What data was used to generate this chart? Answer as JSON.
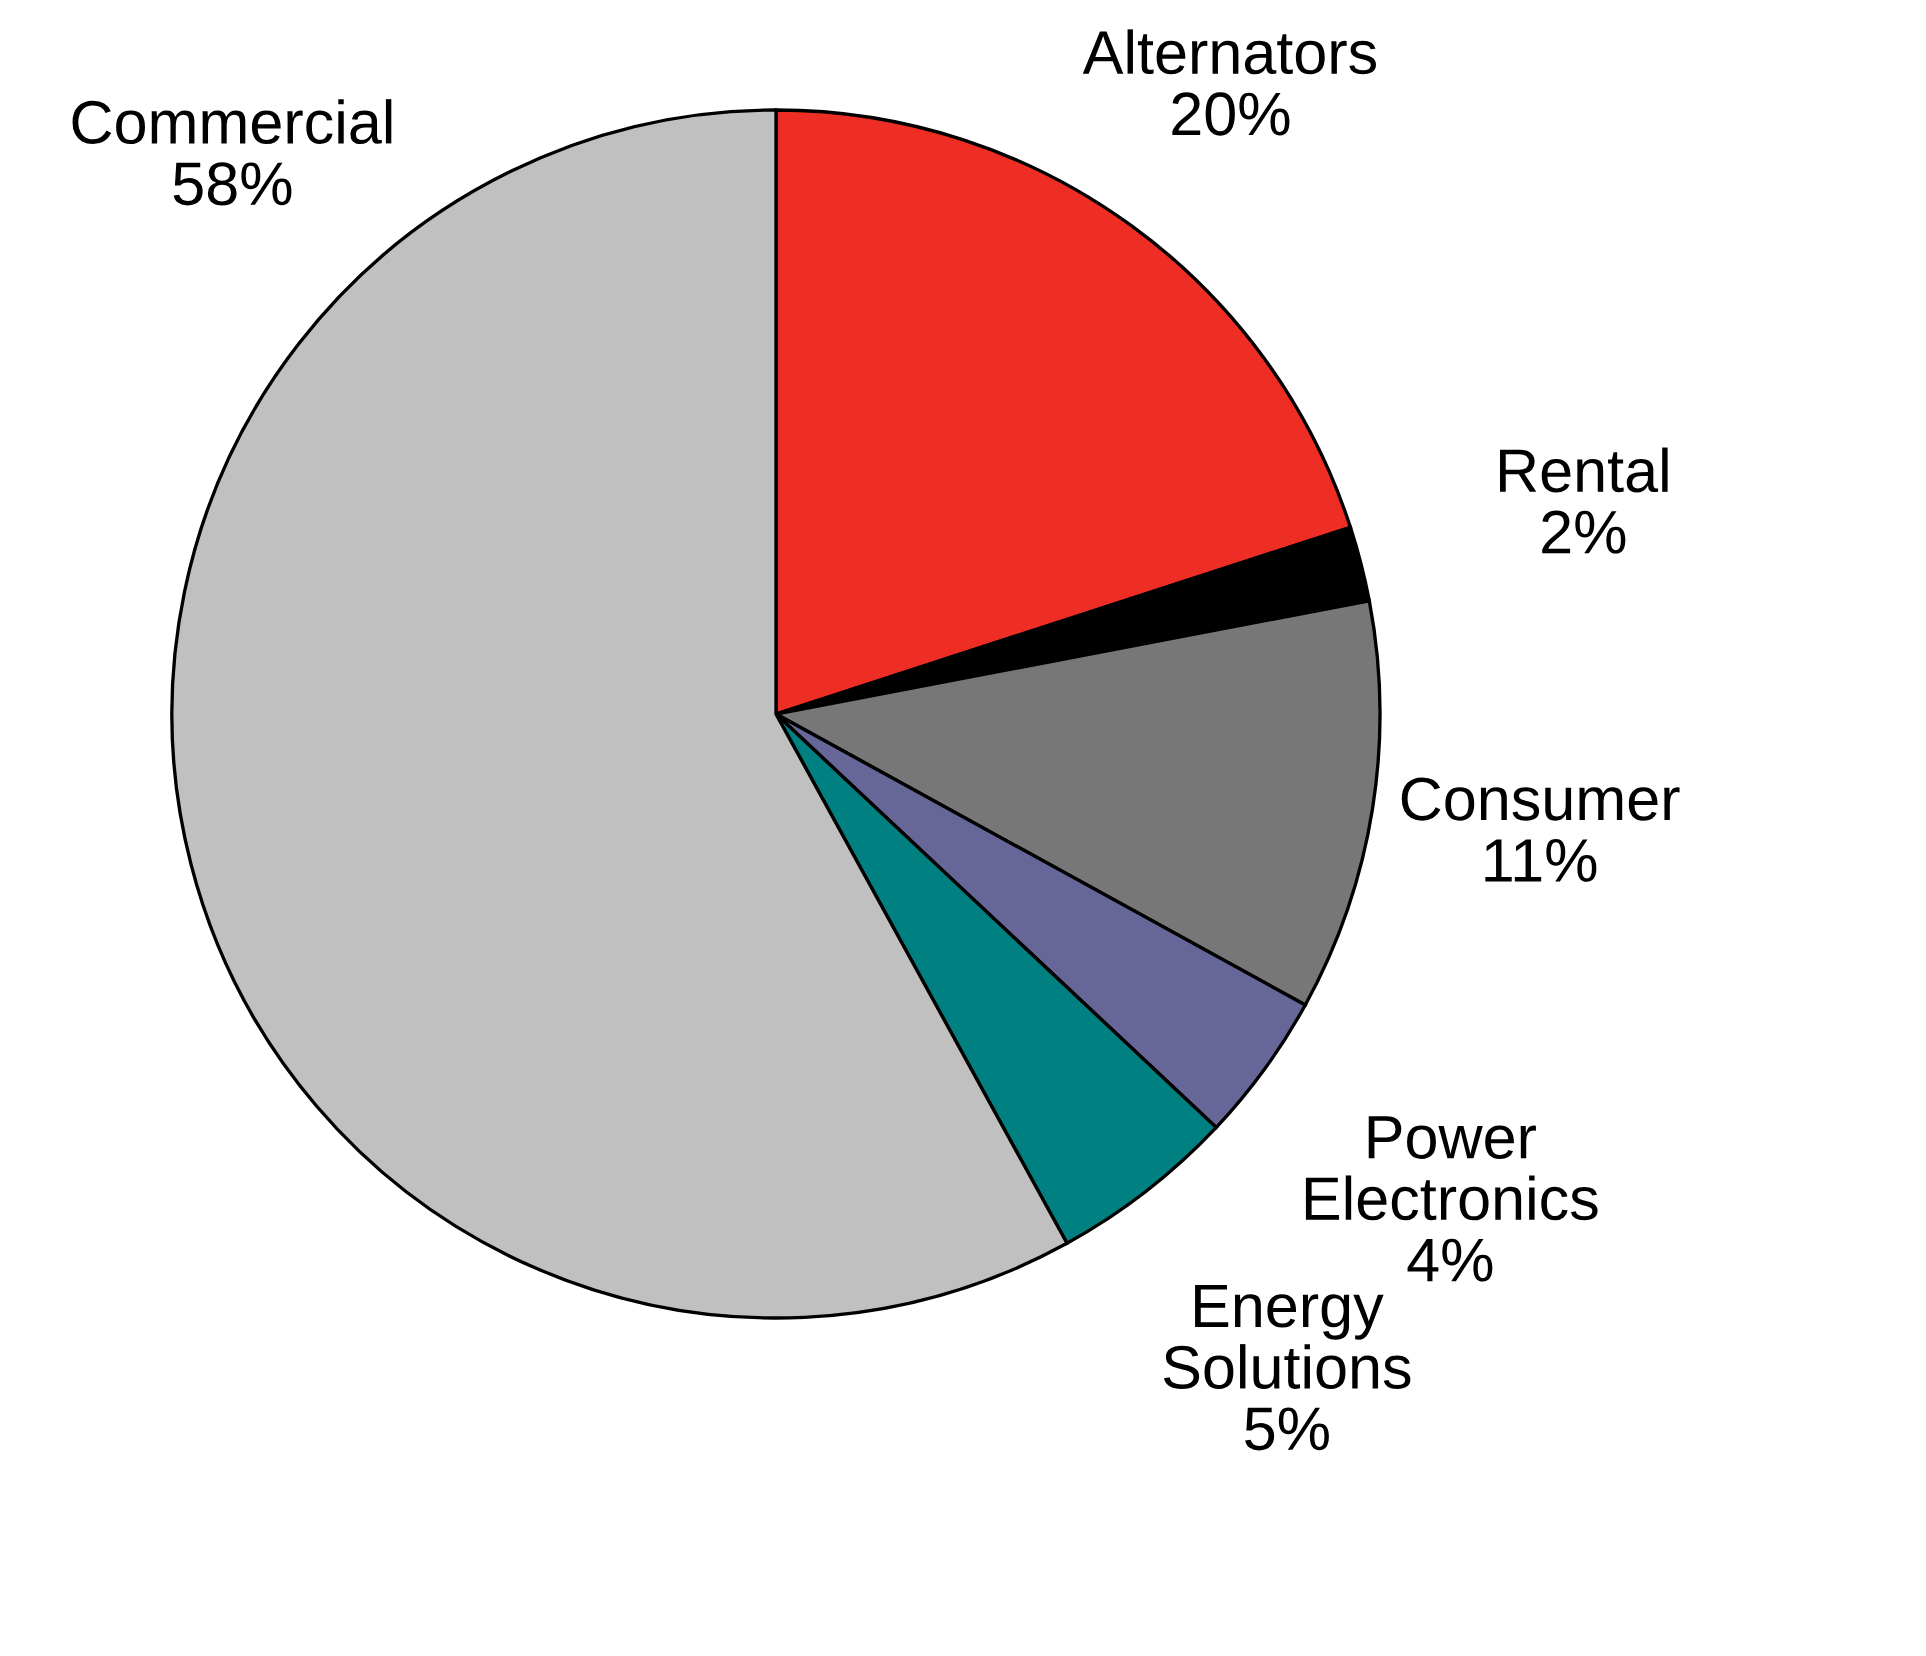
{
  "chart_data": {
    "type": "pie",
    "categories": [
      "Alternators",
      "Rental",
      "Consumer",
      "Power\nElectronics",
      "Energy\nSolutions",
      "Commercial"
    ],
    "values": [
      20,
      2,
      11,
      4,
      5,
      58
    ],
    "value_labels": [
      "20%",
      "2%",
      "11%",
      "4%",
      "5%",
      "58%"
    ],
    "colors": [
      "#ee2e24",
      "#000000",
      "#777777",
      "#666699",
      "#008080",
      "#c0c0c0"
    ]
  }
}
